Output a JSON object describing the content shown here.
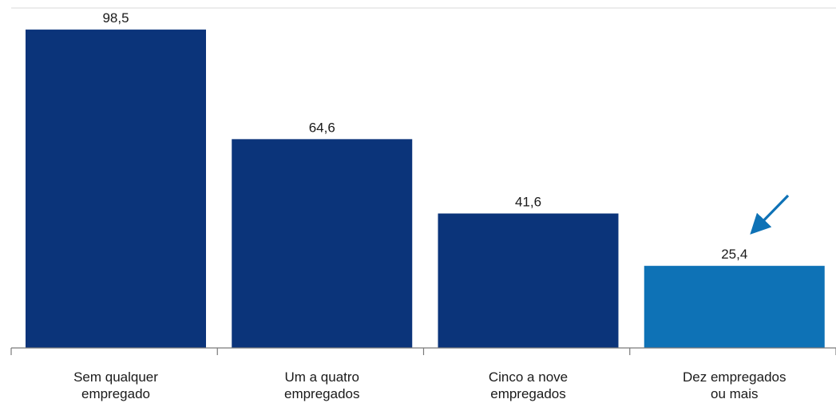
{
  "chart_data": {
    "type": "bar",
    "title": "",
    "xlabel": "",
    "ylabel": "",
    "ylim": [
      0,
      105
    ],
    "grid": false,
    "categories": [
      [
        "Sem qualquer",
        "empregado"
      ],
      [
        "Um a quatro",
        "empregados"
      ],
      [
        "Cinco a nove",
        "empregados"
      ],
      [
        "Dez empregados",
        "ou mais"
      ]
    ],
    "values": [
      98.5,
      64.6,
      41.6,
      25.4
    ],
    "value_labels": [
      "98,5",
      "64,6",
      "41,6",
      "25,4"
    ],
    "highlight_index": 3,
    "annotation": "arrow-pointing-at-highlighted-bar"
  },
  "colors": {
    "bar": "#0b347a",
    "highlight": "#0e72b6",
    "arrow": "#0e72b6",
    "axis": "#7a7a7a",
    "text": "#1a1a1a",
    "top_rule": "#d9d9d9"
  }
}
